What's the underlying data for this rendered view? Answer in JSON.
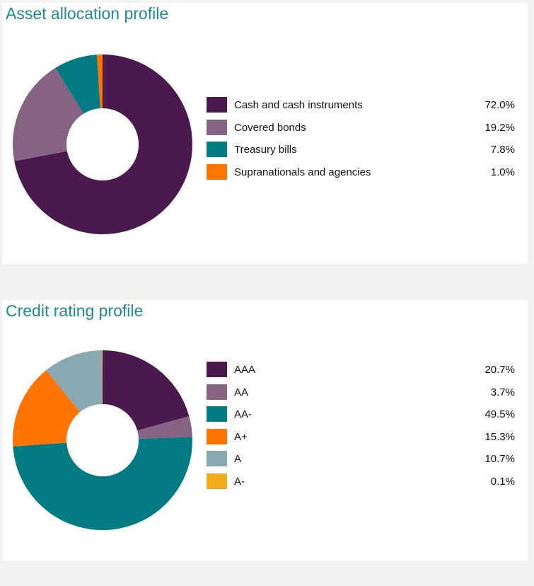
{
  "chart_data": [
    {
      "type": "pie",
      "title": "Asset allocation profile",
      "categories": [
        "Cash and cash instruments",
        "Covered bonds",
        "Treasury bills",
        "Supranationals and agencies"
      ],
      "values": [
        72.0,
        19.2,
        7.8,
        1.0
      ],
      "value_labels": [
        "72.0%",
        "19.2%",
        "7.8%",
        "1.0%"
      ],
      "colors": [
        "#4a1a4f",
        "#866283",
        "#037b82",
        "#ff7400"
      ],
      "legend": "right",
      "donut": true
    },
    {
      "type": "pie",
      "title": "Credit rating profile",
      "categories": [
        "AAA",
        "AA",
        "AA-",
        "A+",
        "A",
        "A-"
      ],
      "values": [
        20.7,
        3.7,
        49.5,
        15.3,
        10.7,
        0.1
      ],
      "value_labels": [
        "20.7%",
        "3.7%",
        "49.5%",
        "15.3%",
        "10.7%",
        "0.1%"
      ],
      "colors": [
        "#4a1a4f",
        "#866283",
        "#037b82",
        "#ff7400",
        "#89a9b2",
        "#f2ab1b"
      ],
      "legend": "right",
      "donut": true
    }
  ]
}
